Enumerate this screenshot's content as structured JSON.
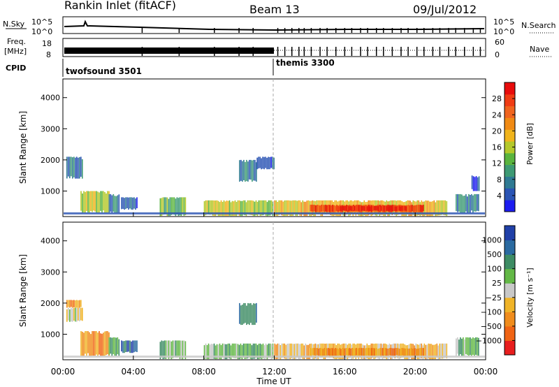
{
  "header": {
    "title": "Rankin Inlet (fitACF)",
    "beam": "Beam 13",
    "date": "09/Jul/2012"
  },
  "top_panels": {
    "nsky_label": "N.Sky",
    "nsky_ticks": [
      "10^5",
      "10^0"
    ],
    "nsearch_label": "N.Search",
    "nsearch_ticks": [
      "10^5",
      "10^0"
    ],
    "freq_label": "Freq.",
    "freq_unit": "[MHz]",
    "freq_ticks": [
      "18",
      "8"
    ],
    "nave_label": "Nave",
    "nave_ticks": [
      "60",
      "0"
    ],
    "cpid_label": "CPID",
    "cpid_1": "twofsound 3501",
    "cpid_2": "themis 3300"
  },
  "chart_data": [
    {
      "type": "heatmap",
      "name": "power",
      "xlabel": "",
      "ylabel": "Slant Range [km]",
      "xlim": [
        0,
        24
      ],
      "ylim": [
        180,
        4600
      ],
      "yticks": [
        "1000",
        "2000",
        "3000",
        "4000"
      ],
      "colorbar_label": "Power [dB]",
      "colorbar_ticks": [
        "4",
        "8",
        "12",
        "16",
        "20",
        "24",
        "28"
      ],
      "colors": [
        "#1c1cf0",
        "#2a54b4",
        "#2f7a93",
        "#3e9a74",
        "#5ab43e",
        "#b4c82a",
        "#f0b41c",
        "#f08a14",
        "#f0641e",
        "#f03c14",
        "#e80c0c"
      ],
      "regions": [
        {
          "x": [
            0.2,
            1.1
          ],
          "y": [
            1400,
            2100
          ],
          "level": 2
        },
        {
          "x": [
            1.0,
            2.6
          ],
          "y": [
            300,
            1000
          ],
          "level": 5
        },
        {
          "x": [
            2.6,
            3.2
          ],
          "y": [
            300,
            900
          ],
          "level": 2
        },
        {
          "x": [
            3.3,
            4.2
          ],
          "y": [
            400,
            800
          ],
          "level": 1
        },
        {
          "x": [
            5.5,
            7.0
          ],
          "y": [
            200,
            800
          ],
          "level": 4
        },
        {
          "x": [
            8.0,
            11.9
          ],
          "y": [
            200,
            700
          ],
          "level": 5
        },
        {
          "x": [
            10.0,
            11.0
          ],
          "y": [
            1300,
            2000
          ],
          "level": 2
        },
        {
          "x": [
            11.0,
            12.0
          ],
          "y": [
            1700,
            2100
          ],
          "level": 1
        },
        {
          "x": [
            12.0,
            21.8
          ],
          "y": [
            200,
            700
          ],
          "level": 6
        },
        {
          "x": [
            14.0,
            20.5
          ],
          "y": [
            320,
            560
          ],
          "level": 9
        },
        {
          "x": [
            15.5,
            19.5
          ],
          "y": [
            360,
            520
          ],
          "level": 10
        },
        {
          "x": [
            22.3,
            23.6
          ],
          "y": [
            300,
            900
          ],
          "level": 2
        },
        {
          "x": [
            23.2,
            23.6
          ],
          "y": [
            1000,
            1500
          ],
          "level": 1
        }
      ]
    },
    {
      "type": "heatmap",
      "name": "velocity",
      "xlabel": "Time UT",
      "ylabel": "Slant Range [km]",
      "xlim": [
        0,
        24
      ],
      "ylim": [
        180,
        4600
      ],
      "xticks": [
        "00:00",
        "04:00",
        "08:00",
        "12:00",
        "16:00",
        "20:00",
        "00:00"
      ],
      "yticks": [
        "1000",
        "2000",
        "3000",
        "4000"
      ],
      "colorbar_label": "Velocity [m s⁻¹]",
      "colorbar_ticks": [
        "1000",
        "500",
        "100",
        "25",
        "−25",
        "−100",
        "−500",
        "−1000"
      ],
      "colors": [
        "#2040a8",
        "#2a6aa0",
        "#3d8c64",
        "#63b846",
        "#c8c8c8",
        "#f0b428",
        "#f08c1c",
        "#f06414",
        "#e81e1e"
      ],
      "regions": [
        {
          "x": [
            0.2,
            1.0
          ],
          "y": [
            1850,
            2100
          ],
          "level": 6
        },
        {
          "x": [
            0.2,
            1.1
          ],
          "y": [
            1400,
            1850
          ],
          "level": 4
        },
        {
          "x": [
            1.0,
            2.6
          ],
          "y": [
            300,
            1100
          ],
          "level": 6
        },
        {
          "x": [
            2.6,
            3.2
          ],
          "y": [
            300,
            900
          ],
          "level": 2
        },
        {
          "x": [
            3.3,
            4.2
          ],
          "y": [
            400,
            800
          ],
          "level": 1
        },
        {
          "x": [
            5.5,
            7.0
          ],
          "y": [
            200,
            800
          ],
          "level": 3
        },
        {
          "x": [
            8.0,
            11.9
          ],
          "y": [
            200,
            700
          ],
          "level": 3
        },
        {
          "x": [
            10.0,
            11.0
          ],
          "y": [
            1300,
            2000
          ],
          "level": 2
        },
        {
          "x": [
            12.0,
            21.8
          ],
          "y": [
            200,
            700
          ],
          "level": 5
        },
        {
          "x": [
            14.0,
            20.5
          ],
          "y": [
            300,
            560
          ],
          "level": 6
        },
        {
          "x": [
            22.3,
            23.6
          ],
          "y": [
            300,
            900
          ],
          "level": 3
        }
      ]
    }
  ]
}
